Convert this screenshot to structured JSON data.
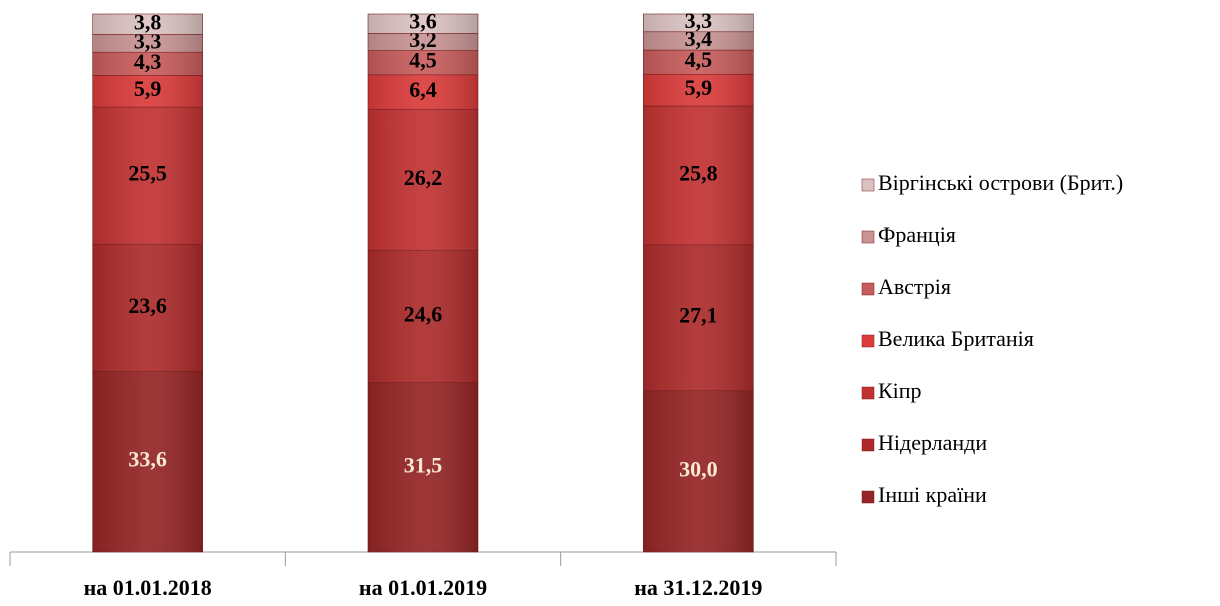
{
  "chart_data": {
    "type": "stacked_bar",
    "categories": [
      "на 01.01.2018",
      "на 01.01.2019",
      "на 31.12.2019"
    ],
    "series": [
      {
        "name": "Інші країни",
        "color": "#952525",
        "values": [
          33.6,
          31.5,
          30.0
        ],
        "value_labels": [
          "33,6",
          "31,5",
          "30,0"
        ]
      },
      {
        "name": "Нідерланди",
        "color": "#ad2b2b",
        "values": [
          23.6,
          24.6,
          27.1
        ],
        "value_labels": [
          "23,6",
          "24,6",
          "27,1"
        ]
      },
      {
        "name": "Кіпр",
        "color": "#c23232",
        "values": [
          25.5,
          26.2,
          25.8
        ],
        "value_labels": [
          "25,5",
          "26,2",
          "25,8"
        ]
      },
      {
        "name": "Велика Британія",
        "color": "#db3b3b",
        "values": [
          5.9,
          6.4,
          5.9
        ],
        "value_labels": [
          "5,9",
          "6,4",
          "5,9"
        ]
      },
      {
        "name": "Австрія",
        "color": "#c85c5c",
        "values": [
          4.3,
          4.5,
          4.5
        ],
        "value_labels": [
          "4,3",
          "4,5",
          "4,5"
        ]
      },
      {
        "name": "Франція",
        "color": "#c99494",
        "values": [
          3.3,
          3.2,
          3.4
        ],
        "value_labels": [
          "3,3",
          "3,2",
          "3,4"
        ]
      },
      {
        "name": "Віргінські острови (Брит.)",
        "color": "#dcc3c3",
        "values": [
          3.8,
          3.6,
          3.3
        ],
        "value_labels": [
          "3,8",
          "3,6",
          "3,3"
        ]
      }
    ]
  }
}
